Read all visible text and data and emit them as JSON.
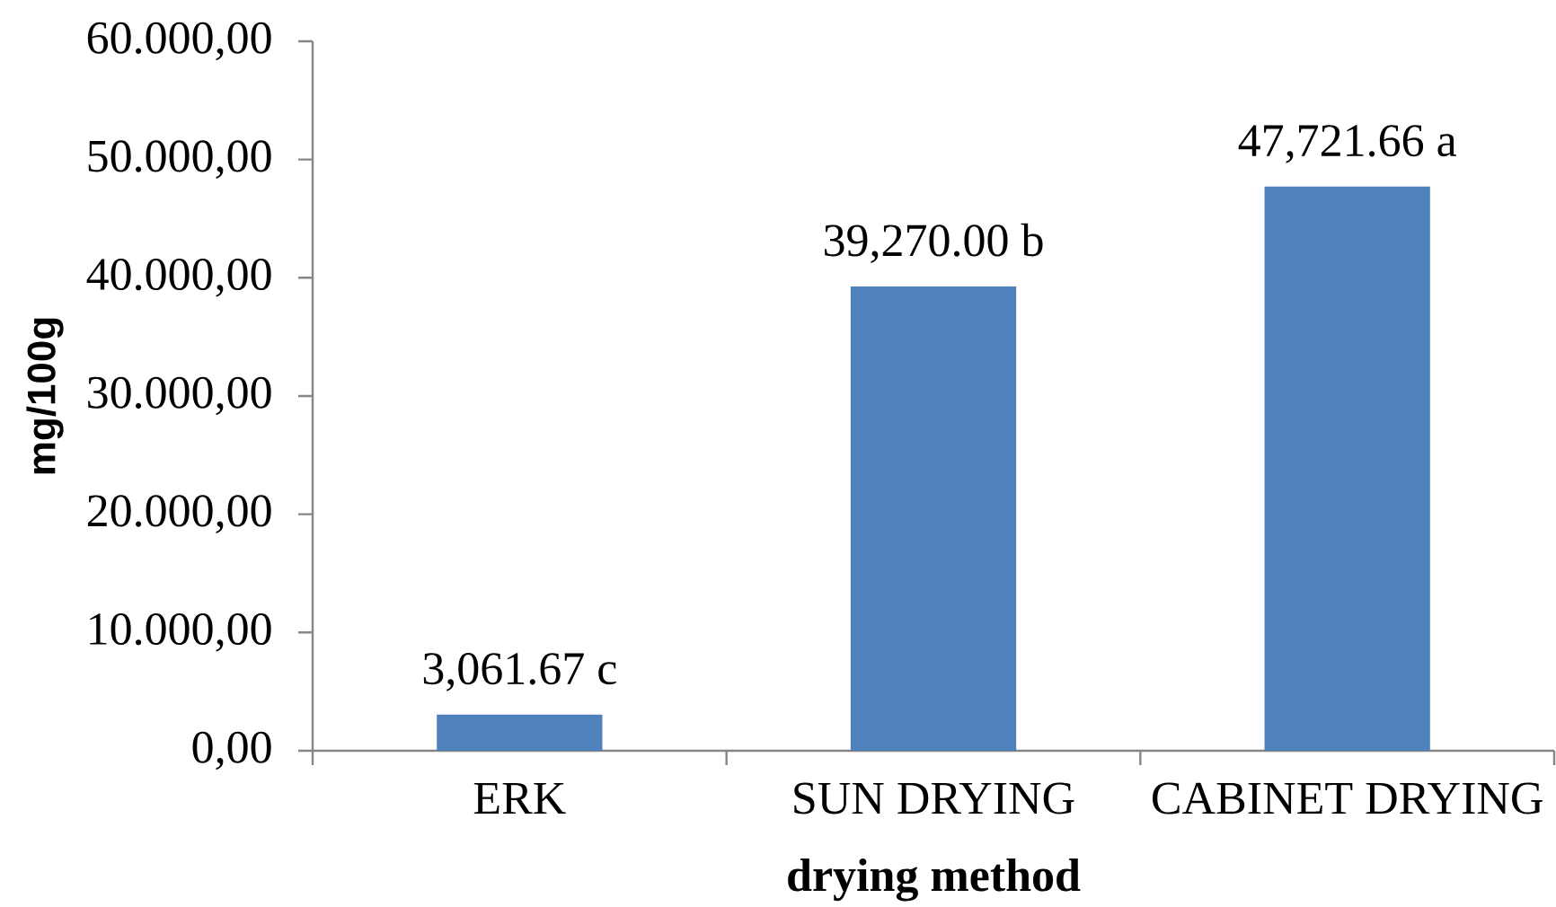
{
  "chart_data": {
    "type": "bar",
    "xlabel": "drying method",
    "ylabel": "mg/100g",
    "categories": [
      "ERK",
      "SUN DRYING",
      "CABINET DRYING"
    ],
    "values": [
      3061.67,
      39270.0,
      47721.66
    ],
    "value_labels": [
      "3,061.67 c",
      "39,270.00 b",
      "47,721.66 a"
    ],
    "color": "#4f81bd",
    "ylim": [
      0,
      60000
    ],
    "yticks": [
      {
        "value": 0,
        "label": "0,00"
      },
      {
        "value": 10000,
        "label": "10.000,00"
      },
      {
        "value": 20000,
        "label": "20.000,00"
      },
      {
        "value": 30000,
        "label": "30.000,00"
      },
      {
        "value": 40000,
        "label": "40.000,00"
      },
      {
        "value": 50000,
        "label": "50.000,00"
      },
      {
        "value": 60000,
        "label": "60.000,00"
      }
    ]
  }
}
